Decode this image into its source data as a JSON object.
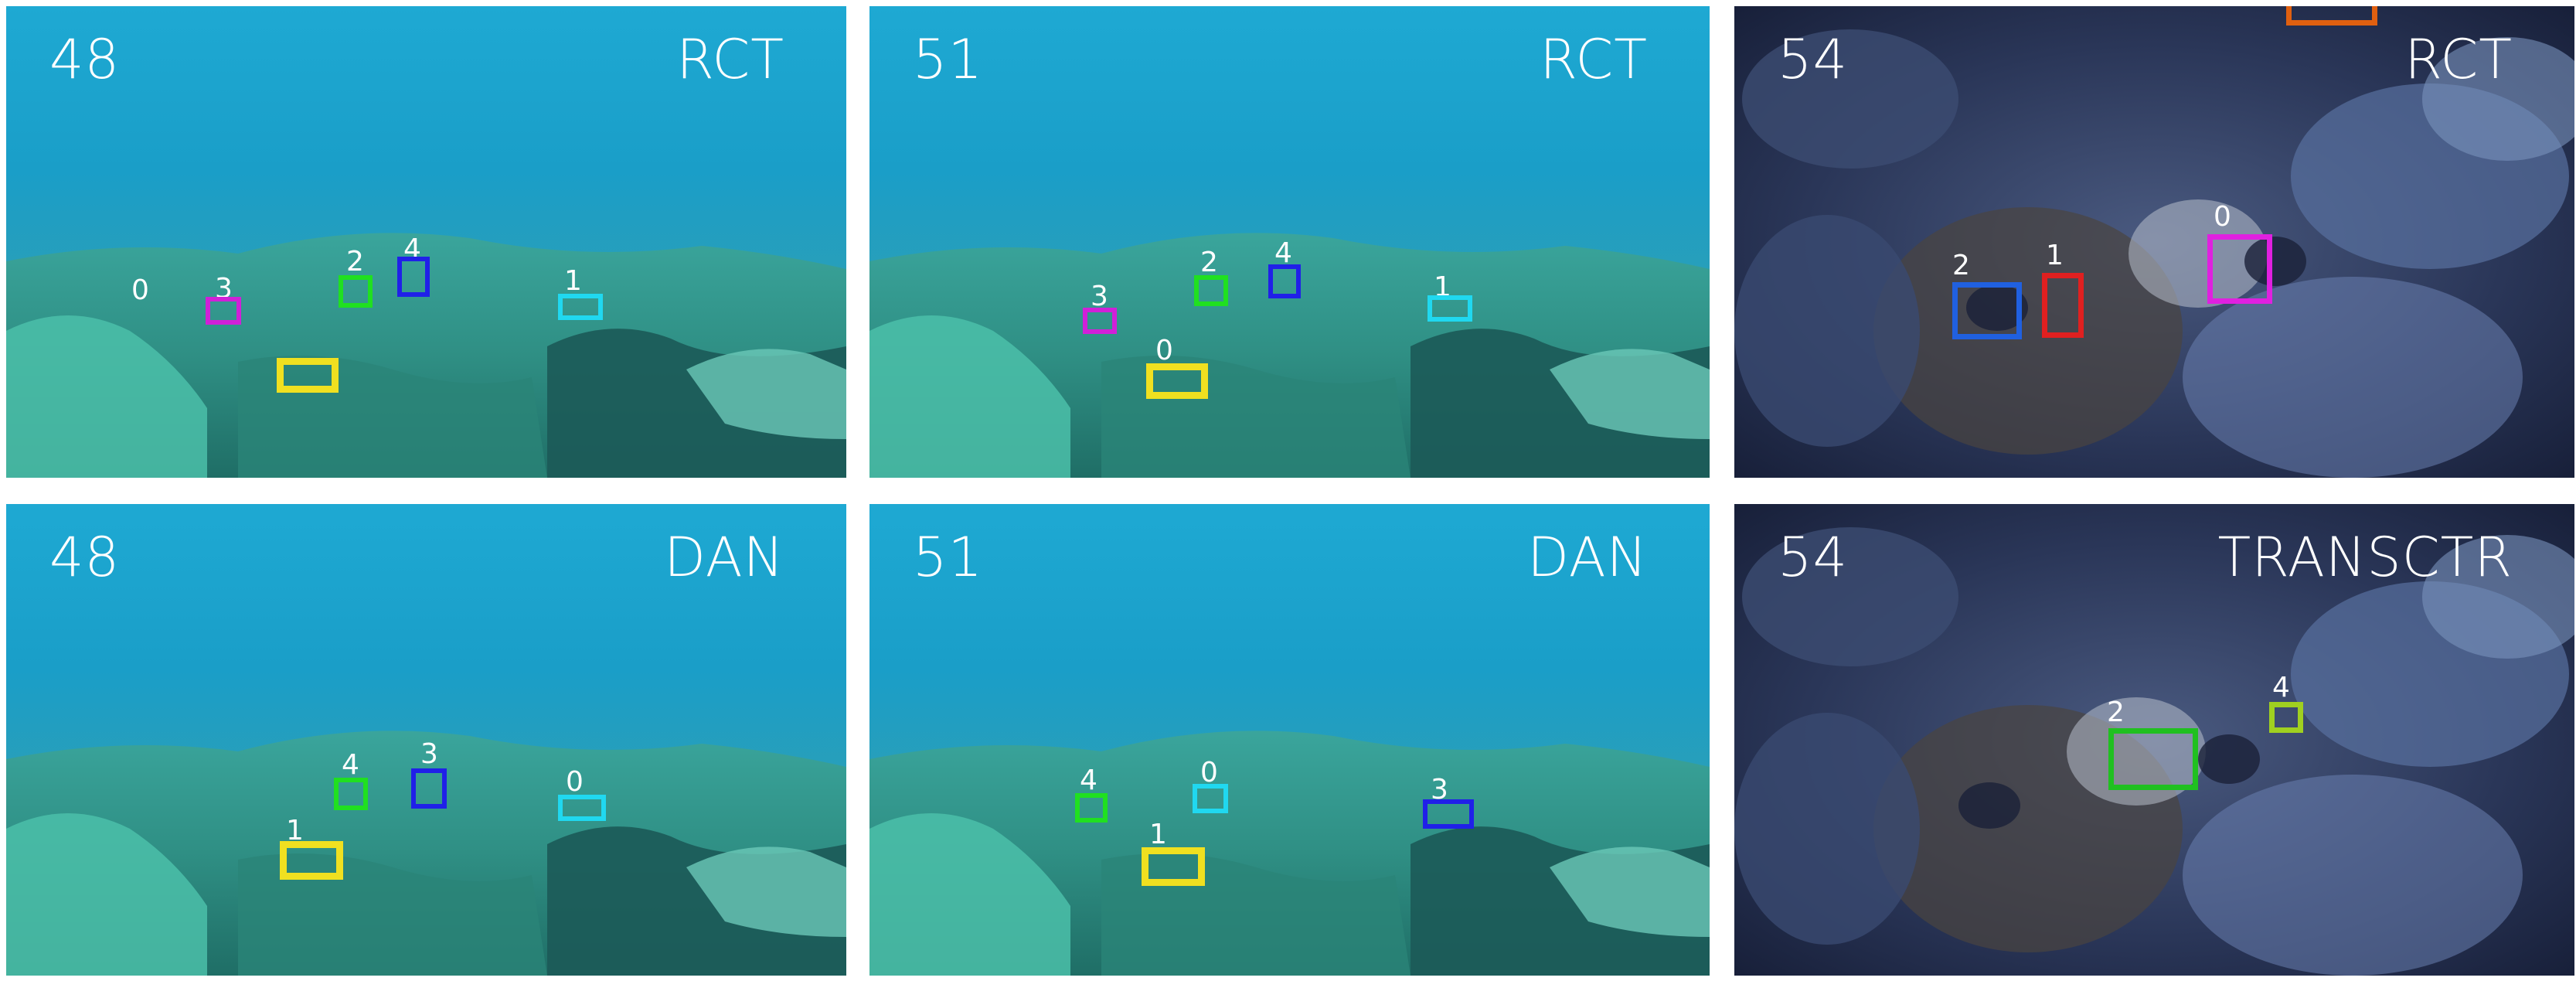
{
  "panels": [
    {
      "frame": "48",
      "method": "RCT",
      "scene": "reef",
      "boxes": [
        {
          "id": "0",
          "color": "#f0e020"
        },
        {
          "id": "1",
          "color": "#20d8f0"
        },
        {
          "id": "2",
          "color": "#20e020"
        },
        {
          "id": "3",
          "color": "#d020d8"
        },
        {
          "id": "4",
          "color": "#2020e8"
        }
      ]
    },
    {
      "frame": "51",
      "method": "RCT",
      "scene": "reef",
      "boxes": [
        {
          "id": "0",
          "color": "#f0e020"
        },
        {
          "id": "1",
          "color": "#20d8f0"
        },
        {
          "id": "2",
          "color": "#20e020"
        },
        {
          "id": "3",
          "color": "#d020d8"
        },
        {
          "id": "4",
          "color": "#2020e8"
        }
      ]
    },
    {
      "frame": "54",
      "method": "RCT",
      "scene": "coral",
      "boxes": [
        {
          "id": "0",
          "color": "#e020e0"
        },
        {
          "id": "1",
          "color": "#e02020"
        },
        {
          "id": "2",
          "color": "#2060e0"
        },
        {
          "id": "",
          "color": "#e06010"
        }
      ]
    },
    {
      "frame": "48",
      "method": "DAN",
      "scene": "reef",
      "boxes": [
        {
          "id": "0",
          "color": "#20d8f0"
        },
        {
          "id": "1",
          "color": "#f0e020"
        },
        {
          "id": "3",
          "color": "#2020e8"
        },
        {
          "id": "4",
          "color": "#20e020"
        }
      ]
    },
    {
      "frame": "51",
      "method": "DAN",
      "scene": "reef",
      "boxes": [
        {
          "id": "0",
          "color": "#20d8f0"
        },
        {
          "id": "1",
          "color": "#f0e020"
        },
        {
          "id": "3",
          "color": "#2020e8"
        },
        {
          "id": "4",
          "color": "#20e020"
        }
      ]
    },
    {
      "frame": "54",
      "method": "TRANSCTR",
      "scene": "coral",
      "boxes": [
        {
          "id": "2",
          "color": "#20c020"
        },
        {
          "id": "4",
          "color": "#a0d020"
        }
      ]
    }
  ]
}
